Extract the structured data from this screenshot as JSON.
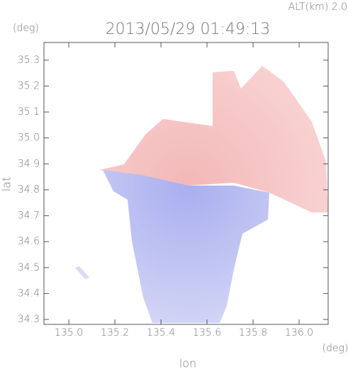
{
  "chart_data": {
    "type": "radar-map",
    "header": "ALT(km) 2.0",
    "title": "2013/05/29 01:49:13",
    "y_unit": "(deg)",
    "x_unit": "(deg)",
    "xlabel": "lon",
    "ylabel": "lat",
    "xlim": [
      134.892,
      136.126
    ],
    "ylim": [
      34.281,
      35.368
    ],
    "xticks": [
      {
        "value": 135.0,
        "label": "135.0"
      },
      135.2,
      135.4,
      135.6,
      135.8,
      {
        "value": 136.0,
        "label": "136.0"
      }
    ],
    "yticks": [
      34.3,
      34.4,
      34.5,
      34.6,
      34.7,
      34.8,
      34.9,
      {
        "value": 35.0,
        "label": "35.0"
      },
      35.1,
      35.2,
      35.3
    ]
  }
}
